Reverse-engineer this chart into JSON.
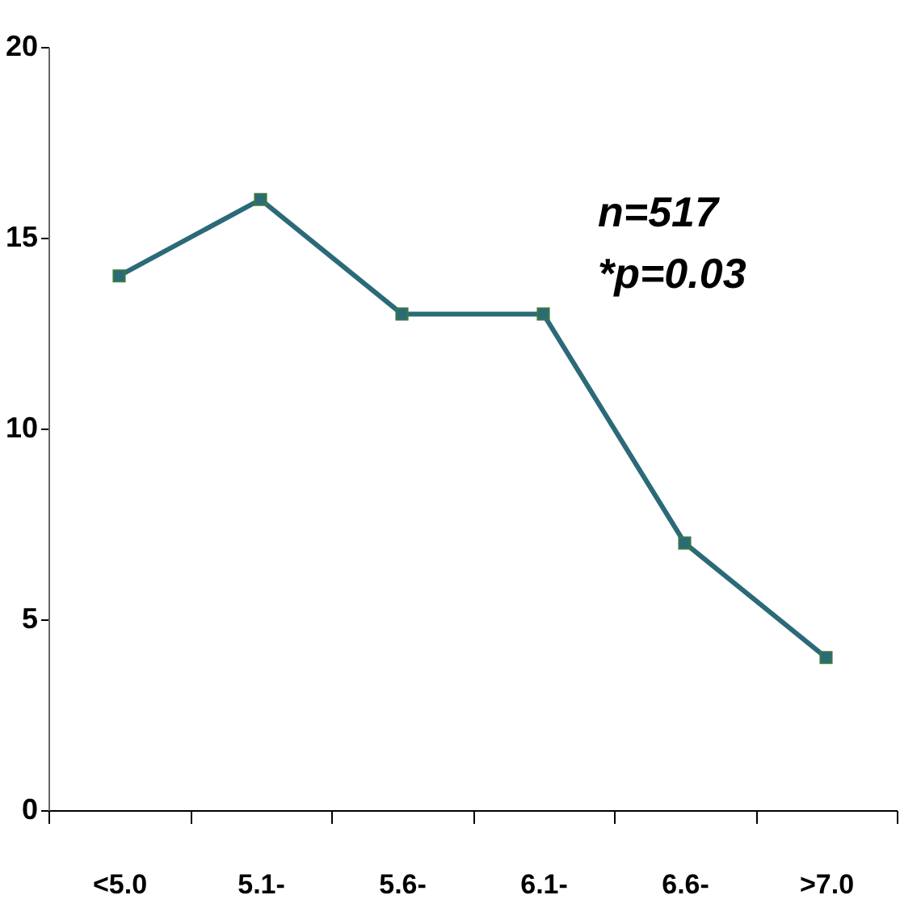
{
  "chart_data": {
    "type": "line",
    "categories": [
      "<5.0",
      "5.1-",
      "5.6-",
      "6.1-",
      "6.6-",
      ">7.0"
    ],
    "series": [
      {
        "color": "#2b6a78",
        "values": [
          14,
          16,
          13,
          13,
          7,
          4
        ]
      }
    ],
    "ylim": [
      0,
      20
    ],
    "yticks": [
      0,
      5,
      10,
      15,
      20
    ],
    "grid": false,
    "marker": "square",
    "line_style": "solid",
    "annotations": [
      "n=517",
      "*p=0.03"
    ]
  }
}
